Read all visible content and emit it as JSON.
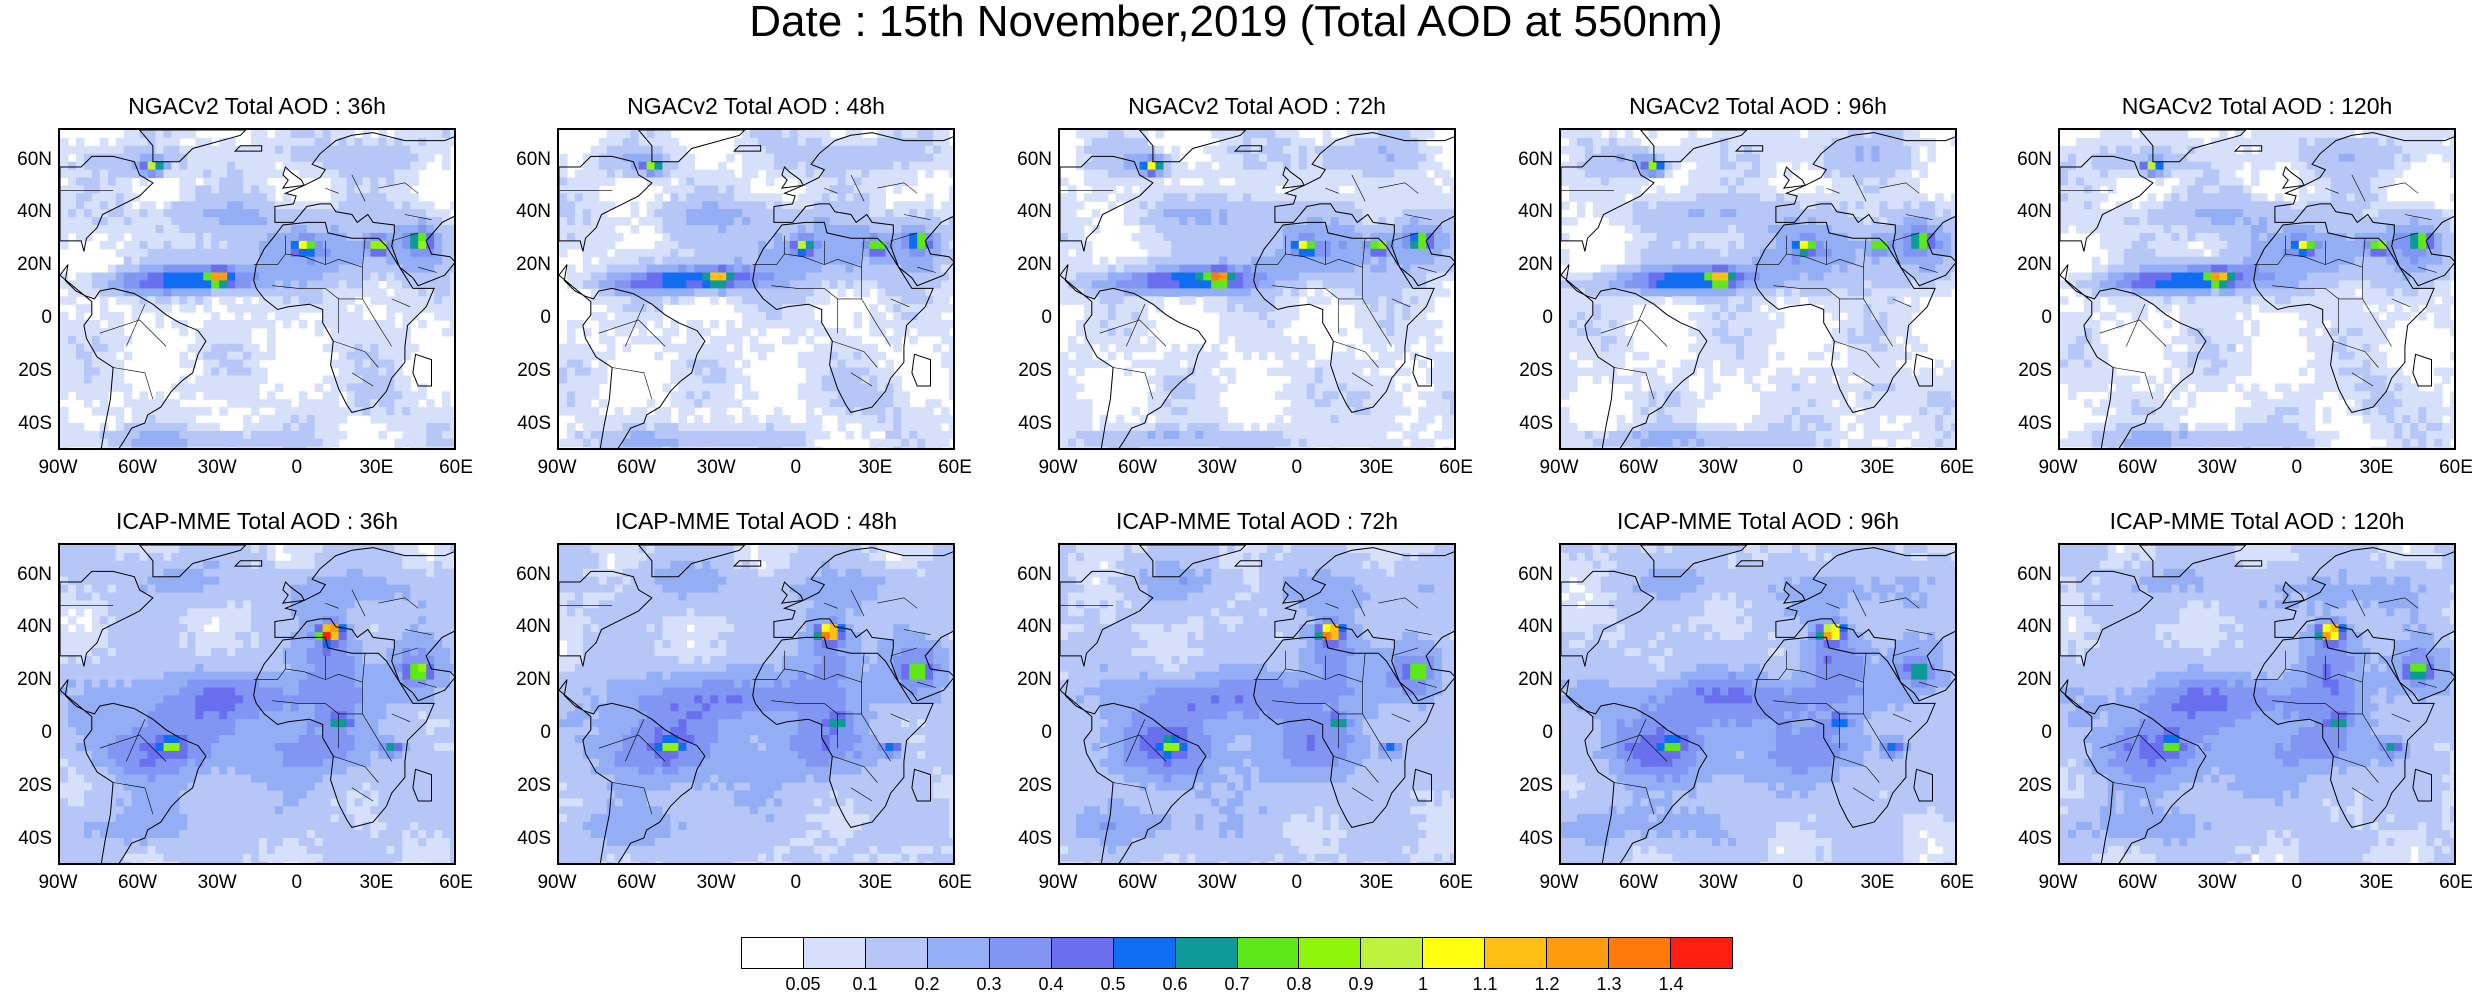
{
  "title": "Date : 15th November,2019 (Total AOD at 550nm)",
  "panels": [
    {
      "label": "NGACv2 Total AOD : 36h",
      "model": "ngac",
      "seed": 11
    },
    {
      "label": "NGACv2 Total AOD : 48h",
      "model": "ngac",
      "seed": 12
    },
    {
      "label": "NGACv2 Total AOD : 72h",
      "model": "ngac",
      "seed": 13
    },
    {
      "label": "NGACv2 Total AOD : 96h",
      "model": "ngac",
      "seed": 14
    },
    {
      "label": "NGACv2 Total AOD : 120h",
      "model": "ngac",
      "seed": 15
    },
    {
      "label": "ICAP-MME Total AOD : 36h",
      "model": "icap",
      "seed": 21
    },
    {
      "label": "ICAP-MME Total AOD : 48h",
      "model": "icap",
      "seed": 22
    },
    {
      "label": "ICAP-MME Total AOD : 72h",
      "model": "icap",
      "seed": 23
    },
    {
      "label": "ICAP-MME Total AOD : 96h",
      "model": "icap",
      "seed": 24
    },
    {
      "label": "ICAP-MME Total AOD : 120h",
      "model": "icap",
      "seed": 25
    }
  ],
  "lat_labels": [
    "60N",
    "40N",
    "20N",
    "0",
    "20S",
    "40S"
  ],
  "lon_labels": [
    "90W",
    "60W",
    "30W",
    "0",
    "30E",
    "60E"
  ],
  "colorbar": {
    "labels": [
      "0.05",
      "0.1",
      "0.2",
      "0.3",
      "0.4",
      "0.5",
      "0.6",
      "0.7",
      "0.8",
      "0.9",
      "1",
      "1.1",
      "1.2",
      "1.3",
      "1.4"
    ],
    "colors": [
      "#ffffff",
      "#d7e0fb",
      "#b5c6f7",
      "#93aef4",
      "#8096f2",
      "#6a6ff0",
      "#0f6df4",
      "#0e9a98",
      "#5ee81a",
      "#8ff50a",
      "#bdf33c",
      "#ffff10",
      "#ffbe12",
      "#ff9c0e",
      "#ff7a0a",
      "#ff1e10"
    ]
  }
}
